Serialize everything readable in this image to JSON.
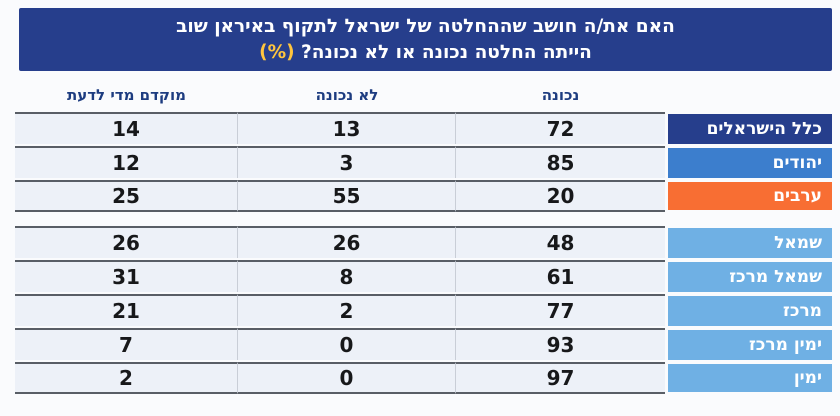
{
  "title": {
    "line1": "האם את/ה חושב שההחלטה של ישראל לתקוף באיראן שוב",
    "line2": "הייתה החלטה נכונה או לא נכונה?",
    "line2_suffix": "(%)"
  },
  "table": {
    "headers": [
      "נכונה",
      "לא נכונה",
      "מוקדם מדי לדעת"
    ],
    "groups": [
      {
        "rows": [
          {
            "label": "כלל הישראלים",
            "label_bg": "#263e8c",
            "values": [
              72,
              13,
              14
            ]
          },
          {
            "label": "יהודים",
            "label_bg": "#3c7ecd",
            "values": [
              85,
              3,
              12
            ]
          },
          {
            "label": "ערבים",
            "label_bg": "#f86e33",
            "values": [
              20,
              55,
              25
            ]
          }
        ]
      },
      {
        "rows": [
          {
            "label": "שמאל",
            "label_bg": "#6fb0e4",
            "values": [
              48,
              26,
              26
            ]
          },
          {
            "label": "שמאל מרכז",
            "label_bg": "#6fb0e4",
            "values": [
              61,
              8,
              31
            ]
          },
          {
            "label": "מרכז",
            "label_bg": "#6fb0e4",
            "values": [
              77,
              2,
              21
            ]
          },
          {
            "label": "ימין מרכז",
            "label_bg": "#6fb0e4",
            "values": [
              93,
              0,
              7
            ]
          },
          {
            "label": "ימין",
            "label_bg": "#6fb0e4",
            "values": [
              97,
              0,
              2
            ]
          }
        ]
      }
    ]
  },
  "colors": {
    "title_bg": "#263e8c",
    "percent_accent": "#ffc53e",
    "all_israelis": "#263e8c",
    "jews": "#3c7ecd",
    "arabs": "#f86e33",
    "political_camp": "#6fb0e4",
    "row_bg": "#edf1f8",
    "header_text": "#1d3c80"
  },
  "chart_data": {
    "type": "table",
    "title": "האם את/ה חושב שההחלטה של ישראל לתקוף באיראן שוב הייתה החלטה נכונה או לא נכונה? (%)",
    "columns": [
      "נכונה",
      "לא נכונה",
      "מוקדם מדי לדעת"
    ],
    "rows": [
      {
        "group": "כלל הישראלים",
        "values": [
          72,
          13,
          14
        ]
      },
      {
        "group": "יהודים",
        "values": [
          85,
          3,
          12
        ]
      },
      {
        "group": "ערבים",
        "values": [
          20,
          55,
          25
        ]
      },
      {
        "group": "שמאל",
        "values": [
          48,
          26,
          26
        ]
      },
      {
        "group": "שמאל מרכז",
        "values": [
          61,
          8,
          31
        ]
      },
      {
        "group": "מרכז",
        "values": [
          77,
          2,
          21
        ]
      },
      {
        "group": "ימין מרכז",
        "values": [
          93,
          0,
          7
        ]
      },
      {
        "group": "ימין",
        "values": [
          97,
          0,
          2
        ]
      }
    ],
    "layout": {
      "direction": "rtl",
      "sections": [
        [
          "כלל הישראלים",
          "יהודים",
          "ערבים"
        ],
        [
          "שמאל",
          "שמאל מרכז",
          "מרכז",
          "ימין מרכז",
          "ימין"
        ]
      ]
    }
  }
}
